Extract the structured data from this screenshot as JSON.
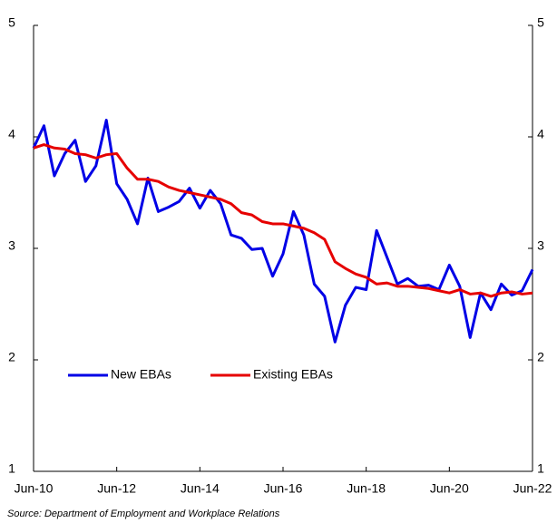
{
  "chart_data": {
    "type": "line",
    "source": "Source: Department of Employment and Workplace Relations",
    "categories": [
      "Jun-10",
      null,
      null,
      null,
      null,
      null,
      null,
      null,
      "Jun-12",
      null,
      null,
      null,
      null,
      null,
      null,
      null,
      "Jun-14",
      null,
      null,
      null,
      null,
      null,
      null,
      null,
      "Jun-16",
      null,
      null,
      null,
      null,
      null,
      null,
      null,
      "Jun-18",
      null,
      null,
      null,
      null,
      null,
      null,
      null,
      "Jun-20",
      null,
      null,
      null,
      null,
      null,
      null,
      null,
      "Jun-22"
    ],
    "series": [
      {
        "name": "New EBAs",
        "color": "#0000e6",
        "values": [
          3.9,
          4.1,
          3.65,
          3.85,
          3.97,
          3.6,
          3.74,
          4.15,
          3.58,
          3.44,
          3.22,
          3.63,
          3.33,
          3.37,
          3.42,
          3.54,
          3.36,
          3.52,
          3.4,
          3.12,
          3.09,
          2.99,
          3.0,
          2.75,
          2.95,
          3.33,
          3.12,
          2.68,
          2.57,
          2.16,
          2.49,
          2.65,
          2.63,
          3.16,
          2.92,
          2.68,
          2.73,
          2.66,
          2.67,
          2.63,
          2.85,
          2.66,
          2.2,
          2.6,
          2.45,
          2.68,
          2.58,
          2.62,
          2.81
        ]
      },
      {
        "name": "Existing EBAs",
        "color": "#e60000",
        "values": [
          3.9,
          3.93,
          3.9,
          3.89,
          3.85,
          3.84,
          3.81,
          3.84,
          3.85,
          3.72,
          3.62,
          3.62,
          3.6,
          3.55,
          3.52,
          3.5,
          3.48,
          3.46,
          3.44,
          3.4,
          3.32,
          3.3,
          3.24,
          3.22,
          3.22,
          3.2,
          3.18,
          3.14,
          3.08,
          2.88,
          2.82,
          2.77,
          2.74,
          2.68,
          2.69,
          2.66,
          2.66,
          2.65,
          2.64,
          2.62,
          2.6,
          2.63,
          2.59,
          2.6,
          2.57,
          2.6,
          2.61,
          2.59,
          2.6
        ]
      }
    ],
    "ylim": [
      1,
      5
    ],
    "yticks": [
      1,
      2,
      3,
      4,
      5
    ],
    "y2lim": [
      1,
      5
    ],
    "y2ticks": [
      1,
      2,
      3,
      4,
      5
    ],
    "grid": false,
    "legend": "lower left"
  }
}
